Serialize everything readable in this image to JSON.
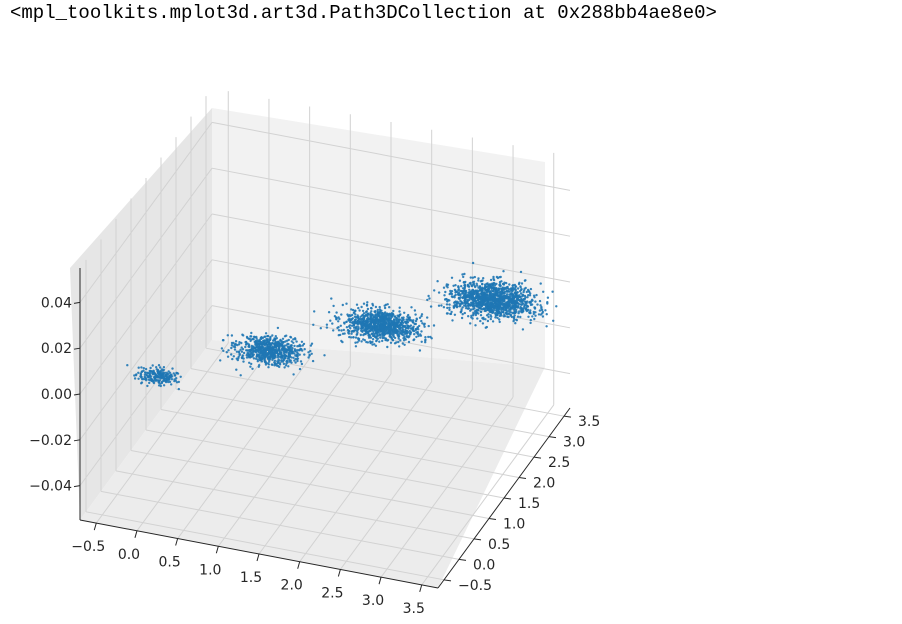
{
  "output_text": "<mpl_toolkits.mplot3d.art3d.Path3DCollection at 0x288bb4ae8e0>",
  "chart_data": {
    "type": "scatter",
    "projection": "3d",
    "title": "",
    "xlabel": "",
    "ylabel": "",
    "zlabel": "",
    "grid": true,
    "marker_color": "#1f77b4",
    "pane_color": "#f2f2f2",
    "x_ticks": [
      "−0.5",
      "0.0",
      "0.5",
      "1.0",
      "1.5",
      "2.0",
      "2.5",
      "3.0",
      "3.5"
    ],
    "y_ticks": [
      "−0.5",
      "0.0",
      "0.5",
      "1.0",
      "1.5",
      "2.0",
      "2.5",
      "3.0",
      "3.5"
    ],
    "z_ticks": [
      "−0.04",
      "−0.02",
      "0.00",
      "0.02",
      "0.04"
    ],
    "xlim": [
      -0.7,
      3.7
    ],
    "ylim": [
      -0.7,
      3.7
    ],
    "zlim": [
      -0.055,
      0.055
    ],
    "clusters": [
      {
        "x": 0,
        "y": 0,
        "z": 0,
        "spread": 0.12,
        "density": "low"
      },
      {
        "x": 1,
        "y": 1,
        "z": 0,
        "spread": 0.2,
        "density": "medium"
      },
      {
        "x": 2,
        "y": 2,
        "z": 0,
        "spread": 0.22,
        "density": "high"
      },
      {
        "x": 3,
        "y": 3,
        "z": 0,
        "spread": 0.25,
        "density": "very-high"
      }
    ]
  }
}
